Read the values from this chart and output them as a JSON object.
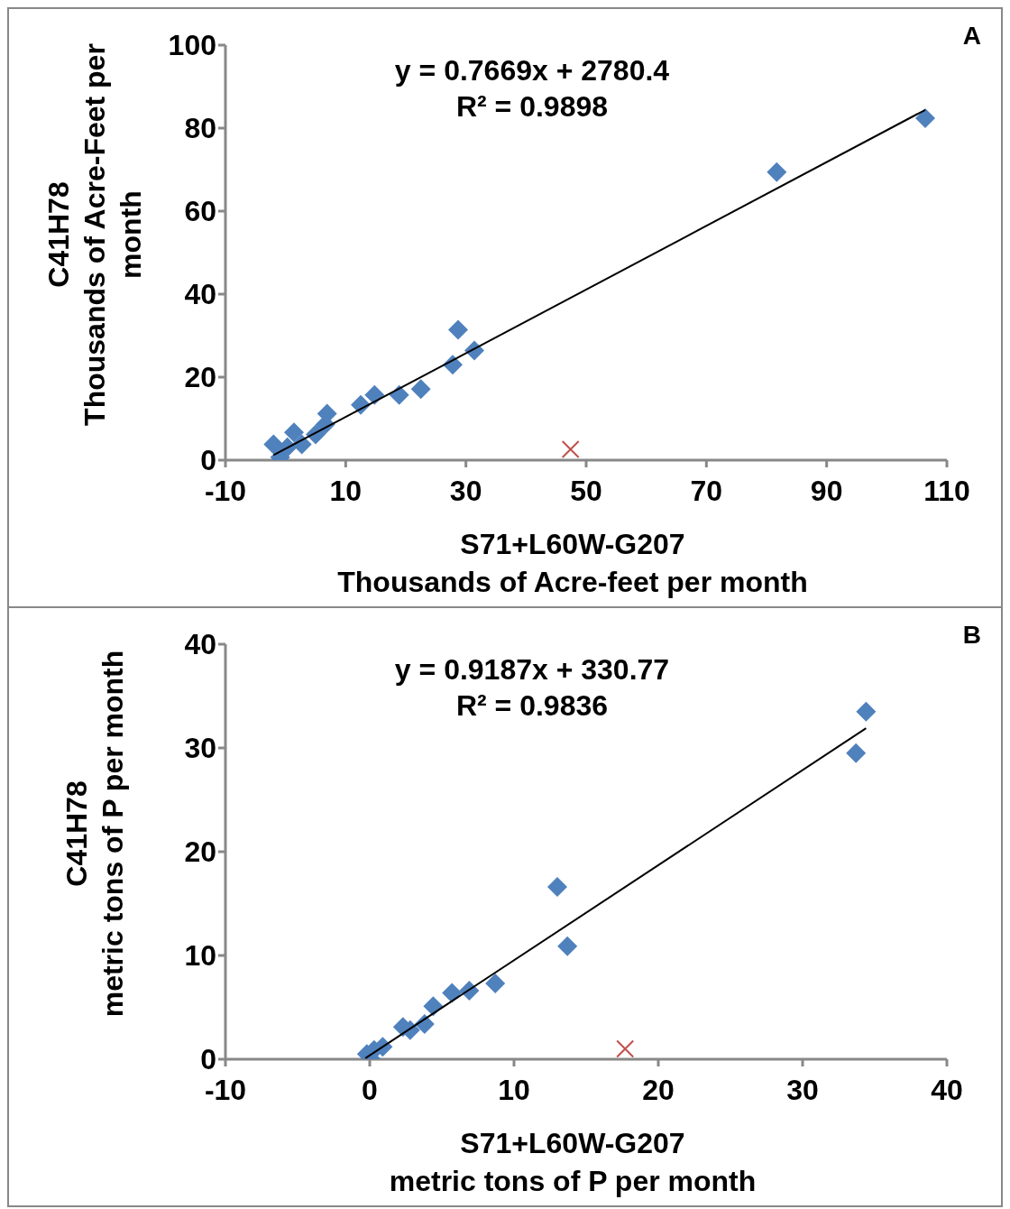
{
  "chart_data": [
    {
      "type": "scatter",
      "xlabel": "S71+L60W-G207\nThousands of Acre-feet  per month",
      "ylabel": "C41H78\nThousands of Acre-Feet per month",
      "annotations": [
        "A",
        "y = 0.7669x + 2780.4",
        "R² = 0.9898"
      ],
      "xlim": [
        -10,
        110
      ],
      "xticks": [
        -10,
        10,
        30,
        50,
        70,
        90,
        110
      ],
      "ylim": [
        0,
        100
      ],
      "yticks": [
        0,
        20,
        40,
        60,
        80,
        100
      ],
      "series": [
        {
          "type": "scatter",
          "marker": "diamond",
          "color": "#4f81bd",
          "x": [
            -2.0,
            -0.9,
            0.3,
            1.4,
            2.7,
            5.0,
            6.6,
            6.9,
            12.5,
            14.8,
            18.9,
            22.5,
            27.8,
            28.7,
            31.4,
            81.7,
            106.4
          ],
          "values": [
            3.8,
            0.7,
            3.1,
            6.7,
            3.8,
            6.2,
            8.6,
            11.2,
            13.3,
            15.7,
            15.7,
            17.1,
            23.0,
            31.4,
            26.4,
            69.4,
            82.4
          ]
        },
        {
          "type": "scatter",
          "marker": "cross",
          "color": "#c0504d",
          "x": [
            47.4
          ],
          "values": [
            2.6
          ]
        },
        {
          "type": "line",
          "marker": "none",
          "color": "#000000",
          "x": [
            -2.0,
            106.4
          ],
          "values": [
            1.2,
            84.4
          ]
        }
      ]
    },
    {
      "type": "scatter",
      "xlabel": "S71+L60W-G207\nmetric tons of P per month",
      "ylabel": "C41H78\nmetric tons of P per month",
      "annotations": [
        "B",
        "y = 0.9187x + 330.77",
        "R² = 0.9836"
      ],
      "xlim": [
        -10,
        40
      ],
      "xticks": [
        -10,
        0,
        10,
        20,
        30,
        40
      ],
      "ylim": [
        0,
        40
      ],
      "yticks": [
        0,
        10,
        20,
        30,
        40
      ],
      "series": [
        {
          "type": "scatter",
          "marker": "diamond",
          "color": "#4f81bd",
          "x": [
            -0.2,
            0.1,
            0.3,
            0.9,
            2.3,
            2.8,
            3.8,
            4.4,
            5.7,
            6.9,
            8.7,
            13.0,
            13.7,
            33.7,
            34.4
          ],
          "values": [
            0.5,
            0.0,
            0.9,
            1.2,
            3.1,
            2.8,
            3.4,
            5.1,
            6.4,
            6.6,
            7.3,
            16.6,
            10.9,
            29.5,
            33.5
          ]
        },
        {
          "type": "scatter",
          "marker": "cross",
          "color": "#c0504d",
          "x": [
            17.7
          ],
          "values": [
            1.0
          ]
        },
        {
          "type": "line",
          "marker": "none",
          "color": "#000000",
          "x": [
            -0.3,
            34.4
          ],
          "values": [
            0.1,
            31.9
          ]
        }
      ]
    }
  ]
}
